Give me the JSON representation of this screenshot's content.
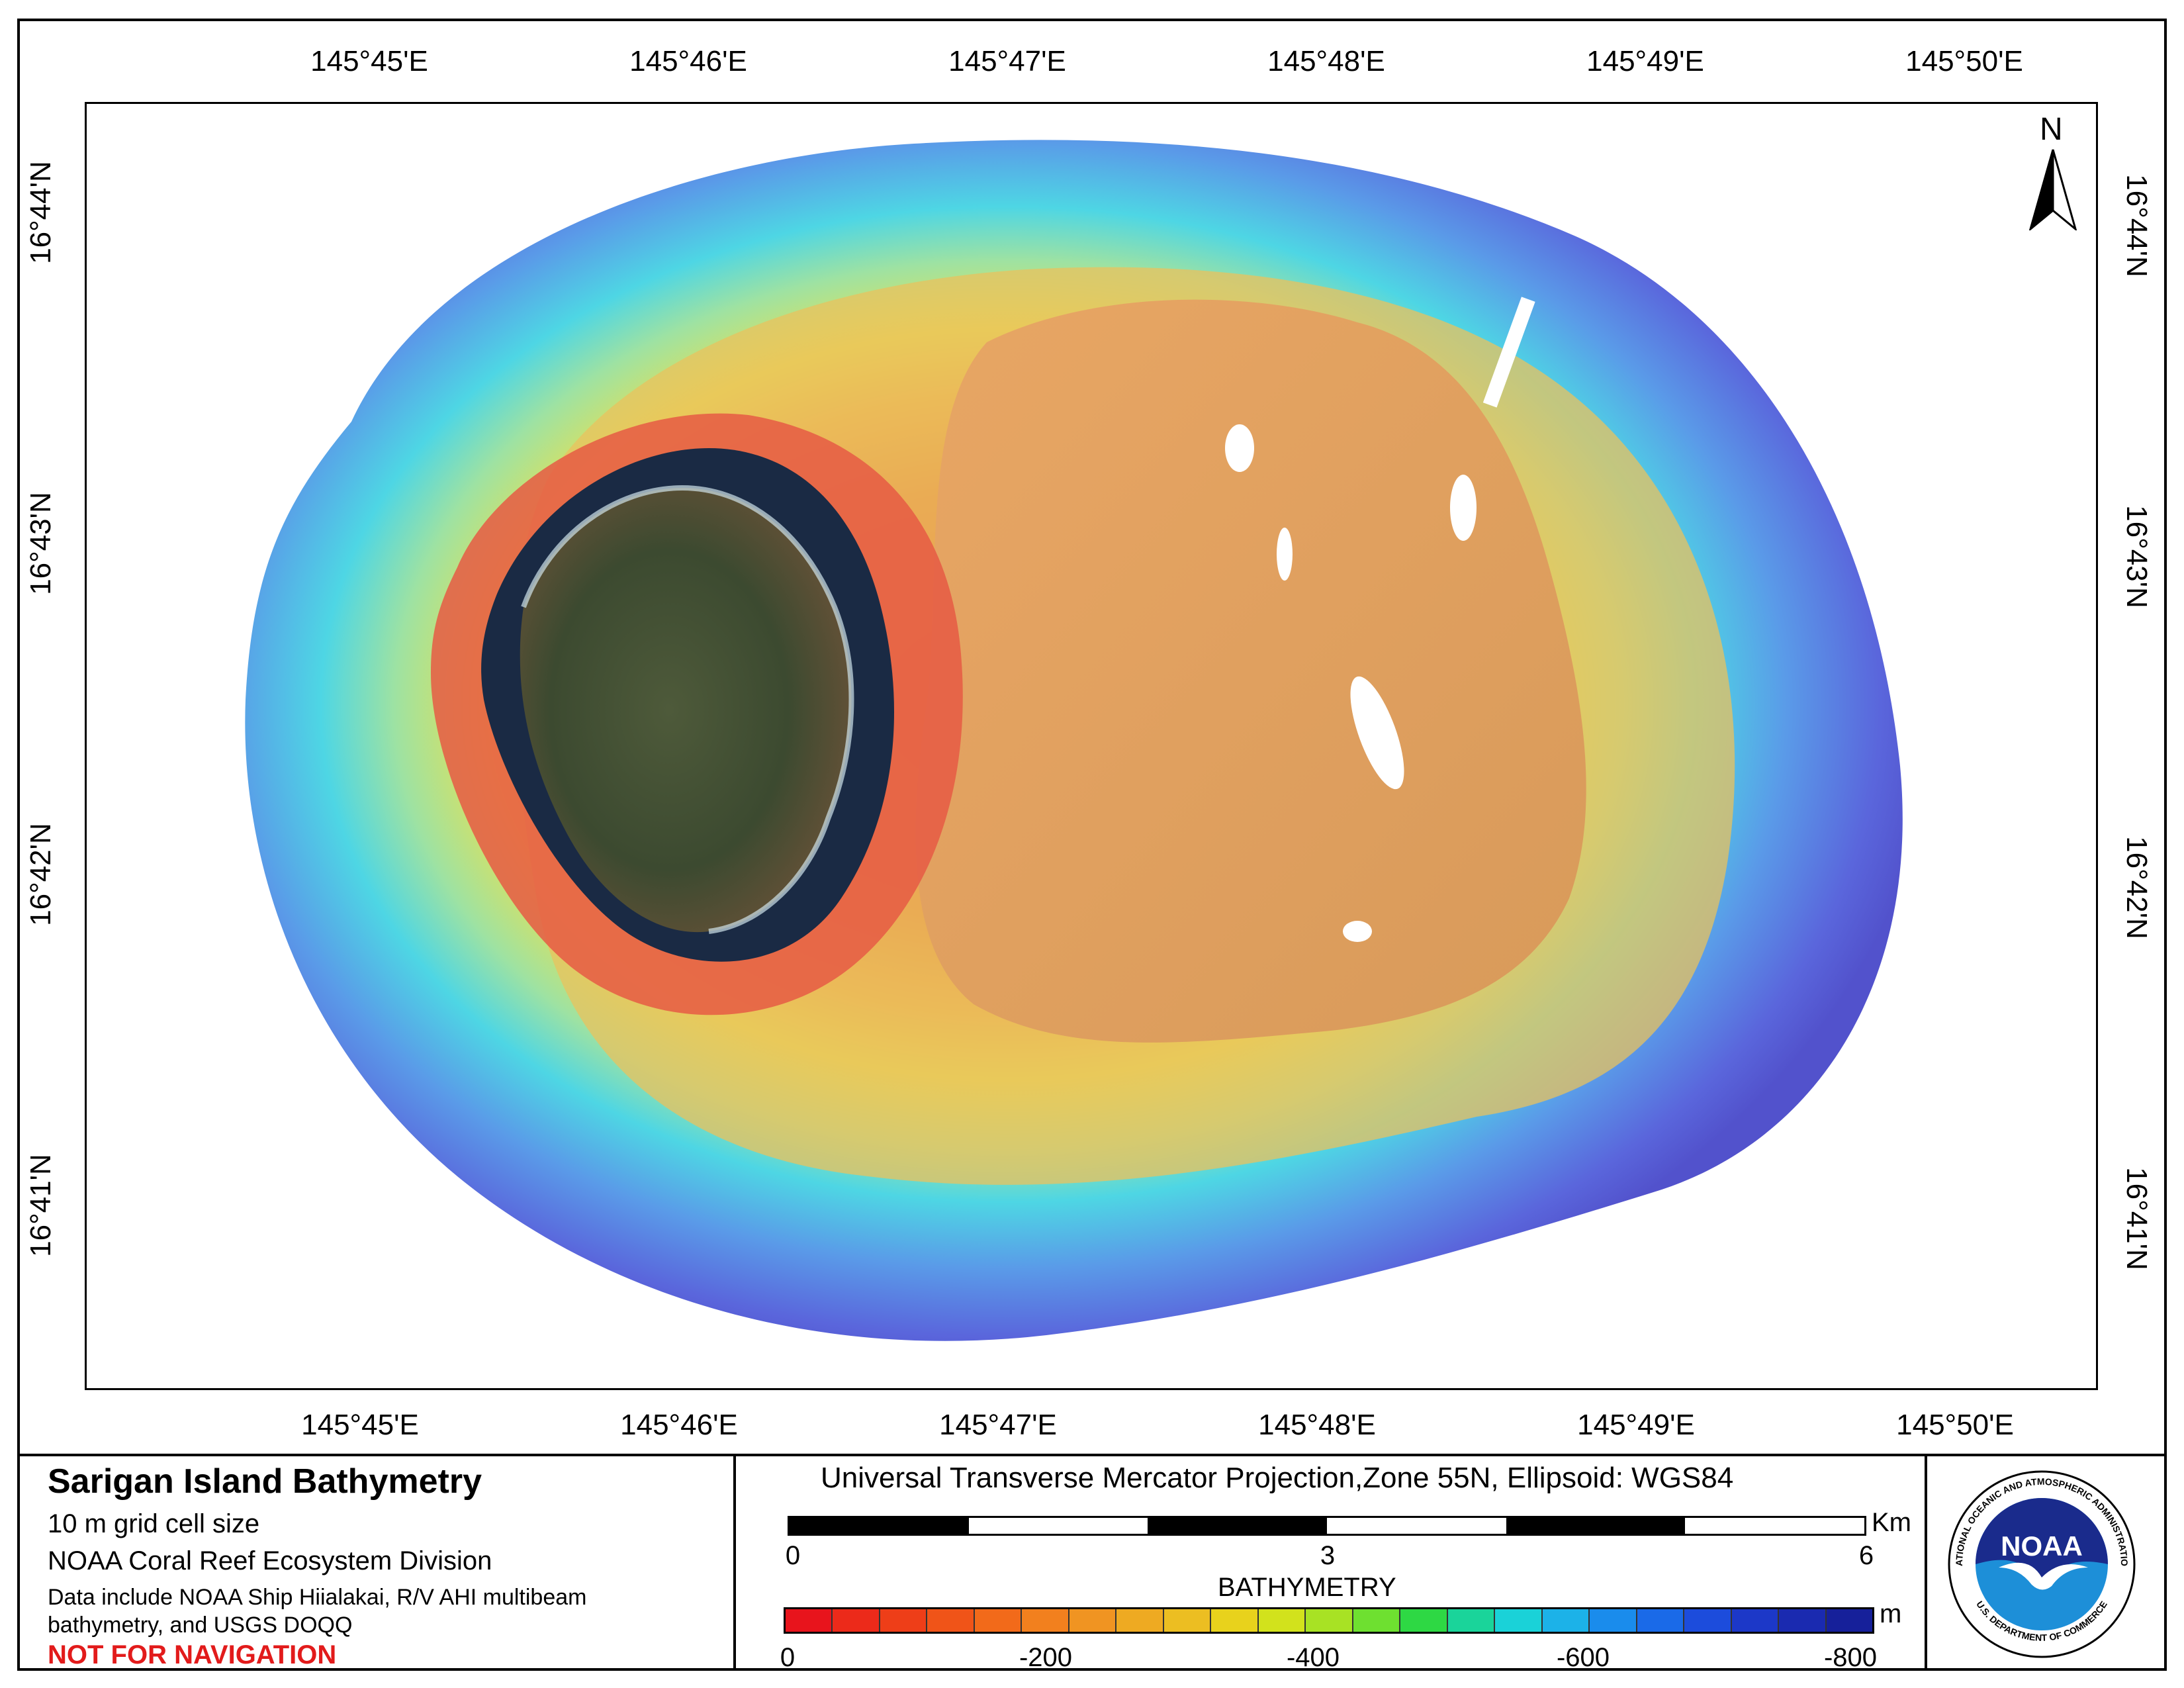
{
  "map": {
    "lon_labels": [
      "145°45'E",
      "145°46'E",
      "145°47'E",
      "145°48'E",
      "145°49'E",
      "145°50'E"
    ],
    "lat_labels": [
      "16°44'N",
      "16°43'N",
      "16°42'N",
      "16°41'N"
    ],
    "north_label": "N"
  },
  "legend": {
    "title": "Sarigan Island Bathymetry",
    "grid": "10 m grid cell size",
    "org": "NOAA Coral Reef Ecosystem Division",
    "data_line1": "Data include NOAA Ship Hiialakai, R/V AHI multibeam",
    "data_line2": "bathymetry, and  USGS DOQQ",
    "warning": "NOT FOR NAVIGATION",
    "projection": "Universal Transverse Mercator Projection,Zone 55N, Ellipsoid: WGS84",
    "scale_labels": [
      "0",
      "3",
      "6"
    ],
    "scale_unit": "Km",
    "bathymetry_title": "BATHYMETRY",
    "bathymetry_unit": "m",
    "bathymetry_labels": [
      "0",
      "-200",
      "-400",
      "-600",
      "-800"
    ]
  },
  "logo": {
    "center_text": "NOAA",
    "ring_top": "NATIONAL OCEANIC AND ATMOSPHERIC ADMINISTRATION",
    "ring_bottom": "U.S. DEPARTMENT OF COMMERCE"
  },
  "colors": {
    "ramp": [
      "#e8141c",
      "#ec2a1a",
      "#ee3e18",
      "#f05418",
      "#f26a1a",
      "#f2801e",
      "#f09422",
      "#eeaa22",
      "#ecbe22",
      "#e8d21c",
      "#d2e21c",
      "#a8e224",
      "#6ee030",
      "#2ed844",
      "#1ad49a",
      "#1ad2d8",
      "#1cb2e8",
      "#1a8cec",
      "#1a6ae8",
      "#1c4cdc",
      "#1c38c8",
      "#1a2ab0",
      "#16209a"
    ],
    "warning": "#e21b1b"
  }
}
